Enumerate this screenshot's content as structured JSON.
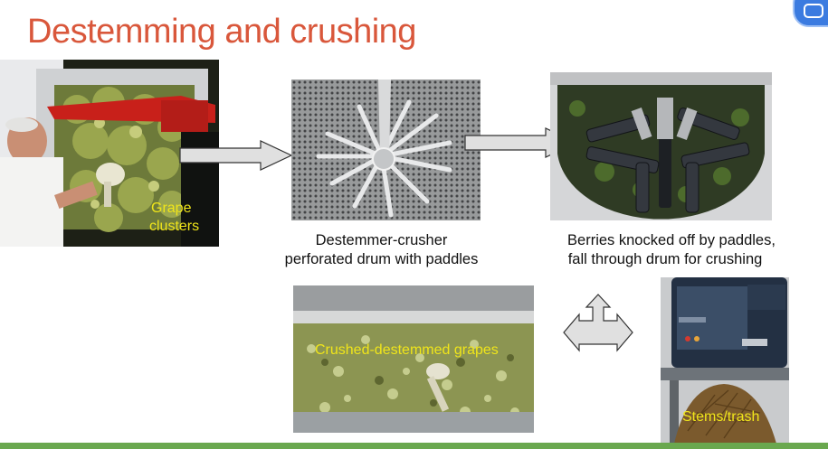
{
  "slide": {
    "title": "Destemming and crushing",
    "accent_color": "#d9573b",
    "footer_bar_color": "#6aa84f"
  },
  "photos": {
    "grape_clusters": {
      "label_line1": "Grape",
      "label_line2": "clusters"
    },
    "destemmer_drum": {},
    "paddles": {},
    "crushed_grapes": {
      "label": "Crushed-destemmed grapes"
    },
    "stems_trash": {
      "label": "Stems/trash"
    }
  },
  "captions": {
    "destemmer_line1": "Destemmer-crusher",
    "destemmer_line2": "perforated drum with paddles",
    "berries_line1": "Berries knocked off by paddles,",
    "berries_line2": "fall through drum for crushing"
  },
  "icons": {
    "arrow1": "arrow-right-icon",
    "arrow2": "arrow-right-icon",
    "arrow3": "four-way-arrow-icon",
    "corner": "presentation-control-icon"
  }
}
